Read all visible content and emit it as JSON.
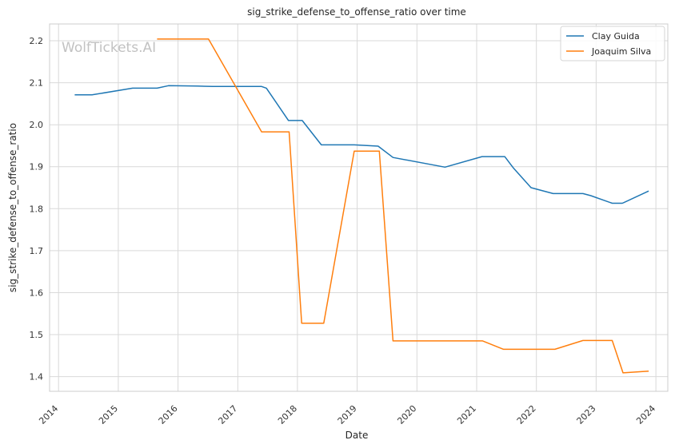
{
  "chart_data": {
    "type": "line",
    "title": "sig_strike_defense_to_offense_ratio over time",
    "xlabel": "Date",
    "ylabel": "sig_strike_defense_to_offense_ratio",
    "watermark": "WolfTickets.AI",
    "xlim": [
      2013.85,
      2024.2
    ],
    "ylim": [
      1.365,
      2.24
    ],
    "x_ticks": [
      2014,
      2015,
      2016,
      2017,
      2018,
      2019,
      2020,
      2021,
      2022,
      2023,
      2024
    ],
    "y_ticks": [
      1.4,
      1.5,
      1.6,
      1.7,
      1.8,
      1.9,
      2.0,
      2.1,
      2.2
    ],
    "grid": true,
    "legend_position": "top-right",
    "series": [
      {
        "name": "Clay Guida",
        "color": "#1f77b4",
        "x": [
          2014.27,
          2014.56,
          2015.24,
          2015.65,
          2015.84,
          2016.33,
          2016.58,
          2017.4,
          2017.48,
          2017.85,
          2018.08,
          2018.4,
          2018.95,
          2019.35,
          2019.6,
          2020.47,
          2021.09,
          2021.47,
          2021.62,
          2021.91,
          2022.28,
          2022.78,
          2022.91,
          2023.27,
          2023.44,
          2023.88
        ],
        "y": [
          2.071,
          2.071,
          2.087,
          2.087,
          2.093,
          2.092,
          2.091,
          2.091,
          2.087,
          2.01,
          2.01,
          1.952,
          1.952,
          1.949,
          1.922,
          1.899,
          1.924,
          1.924,
          1.896,
          1.85,
          1.836,
          1.836,
          1.831,
          1.813,
          1.813,
          1.842
        ]
      },
      {
        "name": "Joaquim Silva",
        "color": "#ff7f0e",
        "x": [
          2015.65,
          2016.51,
          2017.4,
          2017.86,
          2018.07,
          2018.44,
          2018.95,
          2019.37,
          2019.6,
          2021.1,
          2021.45,
          2022.31,
          2022.78,
          2023.27,
          2023.45,
          2023.88
        ],
        "y": [
          2.204,
          2.204,
          1.983,
          1.983,
          1.527,
          1.527,
          1.937,
          1.937,
          1.485,
          1.485,
          1.465,
          1.465,
          1.486,
          1.486,
          1.409,
          1.413
        ]
      }
    ]
  }
}
